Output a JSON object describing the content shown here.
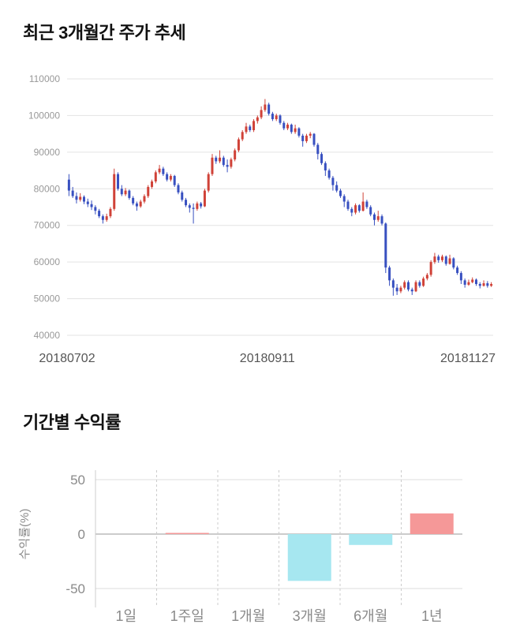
{
  "sections": {
    "price": {
      "title": "최근 3개월간 주가 추세"
    },
    "returns": {
      "title": "기간별 수익률"
    }
  },
  "chart_data": [
    {
      "type": "candlestick",
      "title": "최근 3개월간 주가 추세",
      "ylim": [
        40000,
        110000
      ],
      "yticks": [
        110000,
        100000,
        90000,
        80000,
        70000,
        60000,
        50000,
        40000
      ],
      "xticks": [
        {
          "label": "20180702",
          "pos": 0
        },
        {
          "label": "20180911",
          "pos": 0.47
        },
        {
          "label": "20181127",
          "pos": 1
        }
      ],
      "colors": {
        "up": "#d04238",
        "down": "#3850c0",
        "grid": "#e3e3e3",
        "tick_text": "#999999",
        "xtick_text": "#555555"
      },
      "candles": [
        [
          82500,
          84000,
          78000,
          79500
        ],
        [
          79500,
          80500,
          77500,
          78000
        ],
        [
          78000,
          79000,
          76000,
          77000
        ],
        [
          77000,
          78800,
          76500,
          77800
        ],
        [
          77800,
          78200,
          75800,
          76500
        ],
        [
          76500,
          77300,
          75000,
          75800
        ],
        [
          75800,
          76800,
          74200,
          75000
        ],
        [
          75000,
          75500,
          73000,
          74000
        ],
        [
          74000,
          74500,
          72000,
          72500
        ],
        [
          72500,
          73000,
          70500,
          71500
        ],
        [
          71500,
          73200,
          71000,
          72500
        ],
        [
          72500,
          75000,
          72000,
          74500
        ],
        [
          74500,
          85500,
          74000,
          84000
        ],
        [
          84000,
          84500,
          79500,
          80000
        ],
        [
          80000,
          81000,
          78000,
          78500
        ],
        [
          78500,
          80200,
          78000,
          79500
        ],
        [
          79500,
          79800,
          77000,
          77500
        ],
        [
          77500,
          78000,
          75500,
          76000
        ],
        [
          76000,
          76500,
          74000,
          75200
        ],
        [
          75200,
          77000,
          74800,
          76500
        ],
        [
          76500,
          78500,
          76000,
          78000
        ],
        [
          78000,
          81000,
          77500,
          80500
        ],
        [
          80500,
          82500,
          80000,
          82000
        ],
        [
          82000,
          85000,
          81500,
          84500
        ],
        [
          84500,
          86500,
          84000,
          85500
        ],
        [
          85500,
          86000,
          83500,
          84000
        ],
        [
          84000,
          84500,
          82000,
          82500
        ],
        [
          82500,
          84000,
          82000,
          83500
        ],
        [
          83500,
          83800,
          80500,
          81000
        ],
        [
          81000,
          81500,
          78500,
          79000
        ],
        [
          79000,
          79500,
          76500,
          77000
        ],
        [
          77000,
          77500,
          75000,
          75500
        ],
        [
          75500,
          76000,
          73500,
          74800
        ],
        [
          74800,
          76000,
          70500,
          74500
        ],
        [
          74500,
          76500,
          74000,
          76000
        ],
        [
          76000,
          76400,
          74600,
          75200
        ],
        [
          75200,
          80000,
          75000,
          79500
        ],
        [
          79500,
          84500,
          79000,
          84000
        ],
        [
          84000,
          89500,
          83500,
          88500
        ],
        [
          88500,
          89000,
          86800,
          87500
        ],
        [
          87500,
          90500,
          87000,
          88500
        ],
        [
          88500,
          89000,
          86000,
          86500
        ],
        [
          86500,
          88000,
          84500,
          86000
        ],
        [
          86000,
          88500,
          85500,
          88000
        ],
        [
          88000,
          91000,
          87500,
          90500
        ],
        [
          90500,
          94000,
          90000,
          93500
        ],
        [
          93500,
          96000,
          93000,
          95500
        ],
        [
          95500,
          98000,
          95000,
          97000
        ],
        [
          97000,
          97500,
          95500,
          96000
        ],
        [
          96000,
          99000,
          95500,
          98500
        ],
        [
          98500,
          100000,
          97800,
          99500
        ],
        [
          99500,
          102500,
          99000,
          101500
        ],
        [
          101500,
          104500,
          101000,
          103000
        ],
        [
          103000,
          103500,
          100000,
          100500
        ],
        [
          100500,
          101000,
          98500,
          99000
        ],
        [
          99000,
          100500,
          98500,
          100000
        ],
        [
          100000,
          100300,
          97500,
          98000
        ],
        [
          98000,
          98500,
          96000,
          96500
        ],
        [
          96500,
          98000,
          96000,
          97500
        ],
        [
          97500,
          97800,
          95000,
          95500
        ],
        [
          95500,
          97500,
          95000,
          96500
        ],
        [
          96500,
          96800,
          94000,
          94500
        ],
        [
          94500,
          95000,
          91500,
          93000
        ],
        [
          93000,
          95000,
          92500,
          94500
        ],
        [
          94500,
          95500,
          93800,
          95000
        ],
        [
          95000,
          95200,
          91500,
          92000
        ],
        [
          92000,
          92500,
          88000,
          89500
        ],
        [
          89500,
          90000,
          86500,
          87000
        ],
        [
          87000,
          87500,
          83500,
          85000
        ],
        [
          85000,
          85500,
          82500,
          83000
        ],
        [
          83000,
          83500,
          79500,
          81000
        ],
        [
          81000,
          82000,
          79000,
          79500
        ],
        [
          79500,
          80000,
          77500,
          78000
        ],
        [
          78000,
          78500,
          75000,
          76500
        ],
        [
          76500,
          77000,
          74000,
          74500
        ],
        [
          74500,
          75000,
          72500,
          73500
        ],
        [
          73500,
          76000,
          73000,
          75500
        ],
        [
          75500,
          75800,
          73500,
          74000
        ],
        [
          74000,
          79000,
          73800,
          76500
        ],
        [
          76500,
          77000,
          74500,
          75000
        ],
        [
          75000,
          75500,
          72500,
          73000
        ],
        [
          73000,
          73500,
          70000,
          71500
        ],
        [
          71500,
          74000,
          71000,
          72500
        ],
        [
          72500,
          73000,
          70000,
          70500
        ],
        [
          70500,
          70800,
          57000,
          58500
        ],
        [
          58500,
          59000,
          53500,
          55000
        ],
        [
          55000,
          55500,
          50800,
          53000
        ],
        [
          53000,
          54000,
          51000,
          52000
        ],
        [
          52000,
          53500,
          51500,
          53000
        ],
        [
          53000,
          55000,
          52500,
          54500
        ],
        [
          54500,
          55000,
          52000,
          52500
        ],
        [
          52500,
          53000,
          51000,
          52000
        ],
        [
          52000,
          55000,
          51800,
          54500
        ],
        [
          54500,
          55000,
          53000,
          53500
        ],
        [
          53500,
          56000,
          53200,
          55500
        ],
        [
          55500,
          57000,
          55000,
          56500
        ],
        [
          56500,
          60500,
          56000,
          60000
        ],
        [
          60000,
          62500,
          59500,
          61500
        ],
        [
          61500,
          62000,
          59800,
          60500
        ],
        [
          60500,
          62000,
          60000,
          61500
        ],
        [
          61500,
          61800,
          59000,
          59500
        ],
        [
          59500,
          62000,
          59300,
          61000
        ],
        [
          61000,
          61300,
          58000,
          58500
        ],
        [
          58500,
          59000,
          56500,
          57000
        ],
        [
          57000,
          57500,
          54000,
          55000
        ],
        [
          55000,
          55500,
          53000,
          53800
        ],
        [
          53800,
          55200,
          53500,
          54500
        ],
        [
          54500,
          55800,
          54200,
          55200
        ],
        [
          55200,
          55500,
          53500,
          54000
        ],
        [
          54000,
          54500,
          52800,
          53500
        ],
        [
          53500,
          55000,
          53300,
          54200
        ],
        [
          54200,
          54800,
          53000,
          53500
        ],
        [
          53500,
          54500,
          53200,
          54000
        ]
      ]
    },
    {
      "type": "bar",
      "title": "기간별 수익률",
      "ylabel": "수익률(%)",
      "categories": [
        "1일",
        "1주일",
        "1개월",
        "3개월",
        "6개월",
        "1년"
      ],
      "values": [
        0,
        0.5,
        0,
        -43,
        -10,
        19
      ],
      "ylim": [
        -50,
        50
      ],
      "yticks": [
        50,
        0,
        -50
      ],
      "colors": {
        "positive": "#f59898",
        "negative": "#a6e7f0",
        "zero_line": "#999999",
        "grid": "#dddddd",
        "axis": "#cccccc",
        "text": "#8a8a8a"
      }
    }
  ]
}
